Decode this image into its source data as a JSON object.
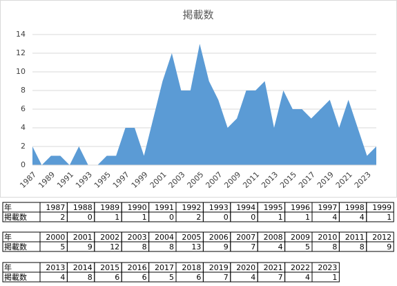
{
  "chart_data": {
    "type": "area",
    "title": "掲載数",
    "categories": [
      "1987",
      "1988",
      "1989",
      "1990",
      "1991",
      "1992",
      "1993",
      "1994",
      "1995",
      "1996",
      "1997",
      "1998",
      "1999",
      "2000",
      "2001",
      "2002",
      "2003",
      "2004",
      "2005",
      "2006",
      "2007",
      "2008",
      "2009",
      "2010",
      "2011",
      "2012",
      "2013",
      "2014",
      "2015",
      "2016",
      "2017",
      "2018",
      "2019",
      "2020",
      "2021",
      "2022",
      "2023",
      null
    ],
    "values": [
      2,
      0,
      1,
      1,
      0,
      2,
      0,
      0,
      1,
      1,
      4,
      4,
      1,
      5,
      9,
      12,
      8,
      8,
      13,
      9,
      7,
      4,
      5,
      8,
      8,
      9,
      4,
      8,
      6,
      6,
      5,
      6,
      7,
      4,
      7,
      4,
      1,
      2
    ],
    "color": "#5b9bd5",
    "ylim": [
      0,
      14
    ],
    "yticks": [
      0,
      2,
      4,
      6,
      8,
      10,
      12,
      14
    ],
    "grid": true
  },
  "table": {
    "row_headers": [
      "年",
      "掲載数"
    ]
  }
}
